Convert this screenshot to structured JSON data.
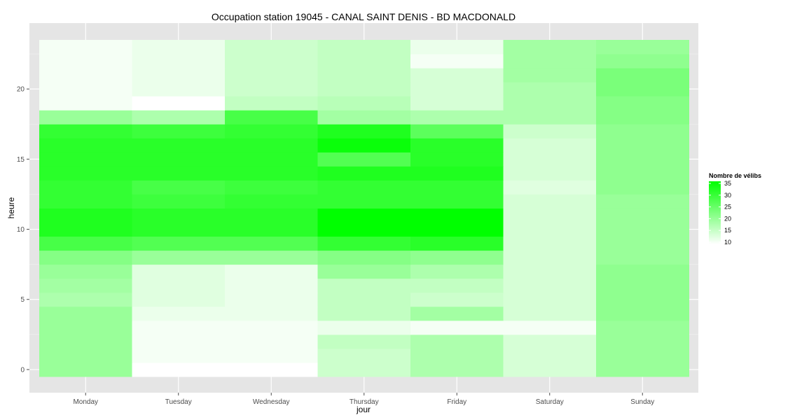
{
  "chart_data": {
    "type": "heatmap",
    "title": "Occupation station 19045 - CANAL SAINT DENIS - BD MACDONALD",
    "xlabel": "jour",
    "ylabel": "heure",
    "x_categories": [
      "Monday",
      "Tuesday",
      "Wednesday",
      "Thursday",
      "Friday",
      "Saturday",
      "Sunday"
    ],
    "y_values": [
      0,
      1,
      2,
      3,
      4,
      5,
      6,
      7,
      8,
      9,
      10,
      11,
      12,
      13,
      14,
      15,
      16,
      17,
      18,
      19,
      20,
      21,
      22,
      23
    ],
    "y_ticks": [
      0,
      5,
      10,
      15,
      20
    ],
    "ylim": [
      -0.5,
      23.5
    ],
    "values": [
      [
        20,
        10,
        10,
        15,
        18,
        14,
        20
      ],
      [
        20,
        11,
        11,
        15,
        18,
        14,
        20
      ],
      [
        20,
        11,
        11,
        16,
        18,
        14,
        20
      ],
      [
        20,
        11,
        11,
        12,
        11,
        11,
        20
      ],
      [
        20,
        12,
        12,
        16,
        19,
        14,
        21
      ],
      [
        18,
        13,
        12,
        16,
        15,
        14,
        21
      ],
      [
        19,
        13,
        12,
        16,
        16,
        14,
        21
      ],
      [
        20,
        13,
        12,
        20,
        18,
        14,
        21
      ],
      [
        22,
        20,
        20,
        22,
        21,
        14,
        20
      ],
      [
        28,
        27,
        27,
        30,
        31,
        14,
        20
      ],
      [
        32,
        31,
        31,
        35,
        35,
        14,
        20
      ],
      [
        32,
        31,
        31,
        35,
        35,
        14,
        20
      ],
      [
        30,
        29,
        30,
        30,
        30,
        14,
        20
      ],
      [
        30,
        28,
        29,
        30,
        30,
        13,
        21
      ],
      [
        31,
        31,
        31,
        32,
        32,
        14,
        21
      ],
      [
        31,
        31,
        31,
        27,
        31,
        14,
        21
      ],
      [
        31,
        31,
        31,
        34,
        31,
        14,
        21
      ],
      [
        30,
        29,
        30,
        32,
        26,
        15,
        21
      ],
      [
        20,
        18,
        28,
        19,
        18,
        18,
        22
      ],
      [
        11,
        10,
        16,
        17,
        14,
        18,
        22
      ],
      [
        11,
        12,
        15,
        16,
        14,
        18,
        23
      ],
      [
        11,
        12,
        15,
        16,
        14,
        19,
        23
      ],
      [
        11,
        12,
        15,
        16,
        11,
        19,
        21
      ],
      [
        11,
        12,
        15,
        16,
        12,
        19,
        20
      ]
    ],
    "legend": {
      "title": "Nombre de vélibs",
      "ticks": [
        35,
        30,
        25,
        20,
        15,
        10
      ],
      "range": [
        10,
        35
      ],
      "color_low": "#ffffff",
      "color_high": "#00ff00",
      "placement": "right"
    },
    "panel_background": "#e5e5e5",
    "grid": true
  }
}
